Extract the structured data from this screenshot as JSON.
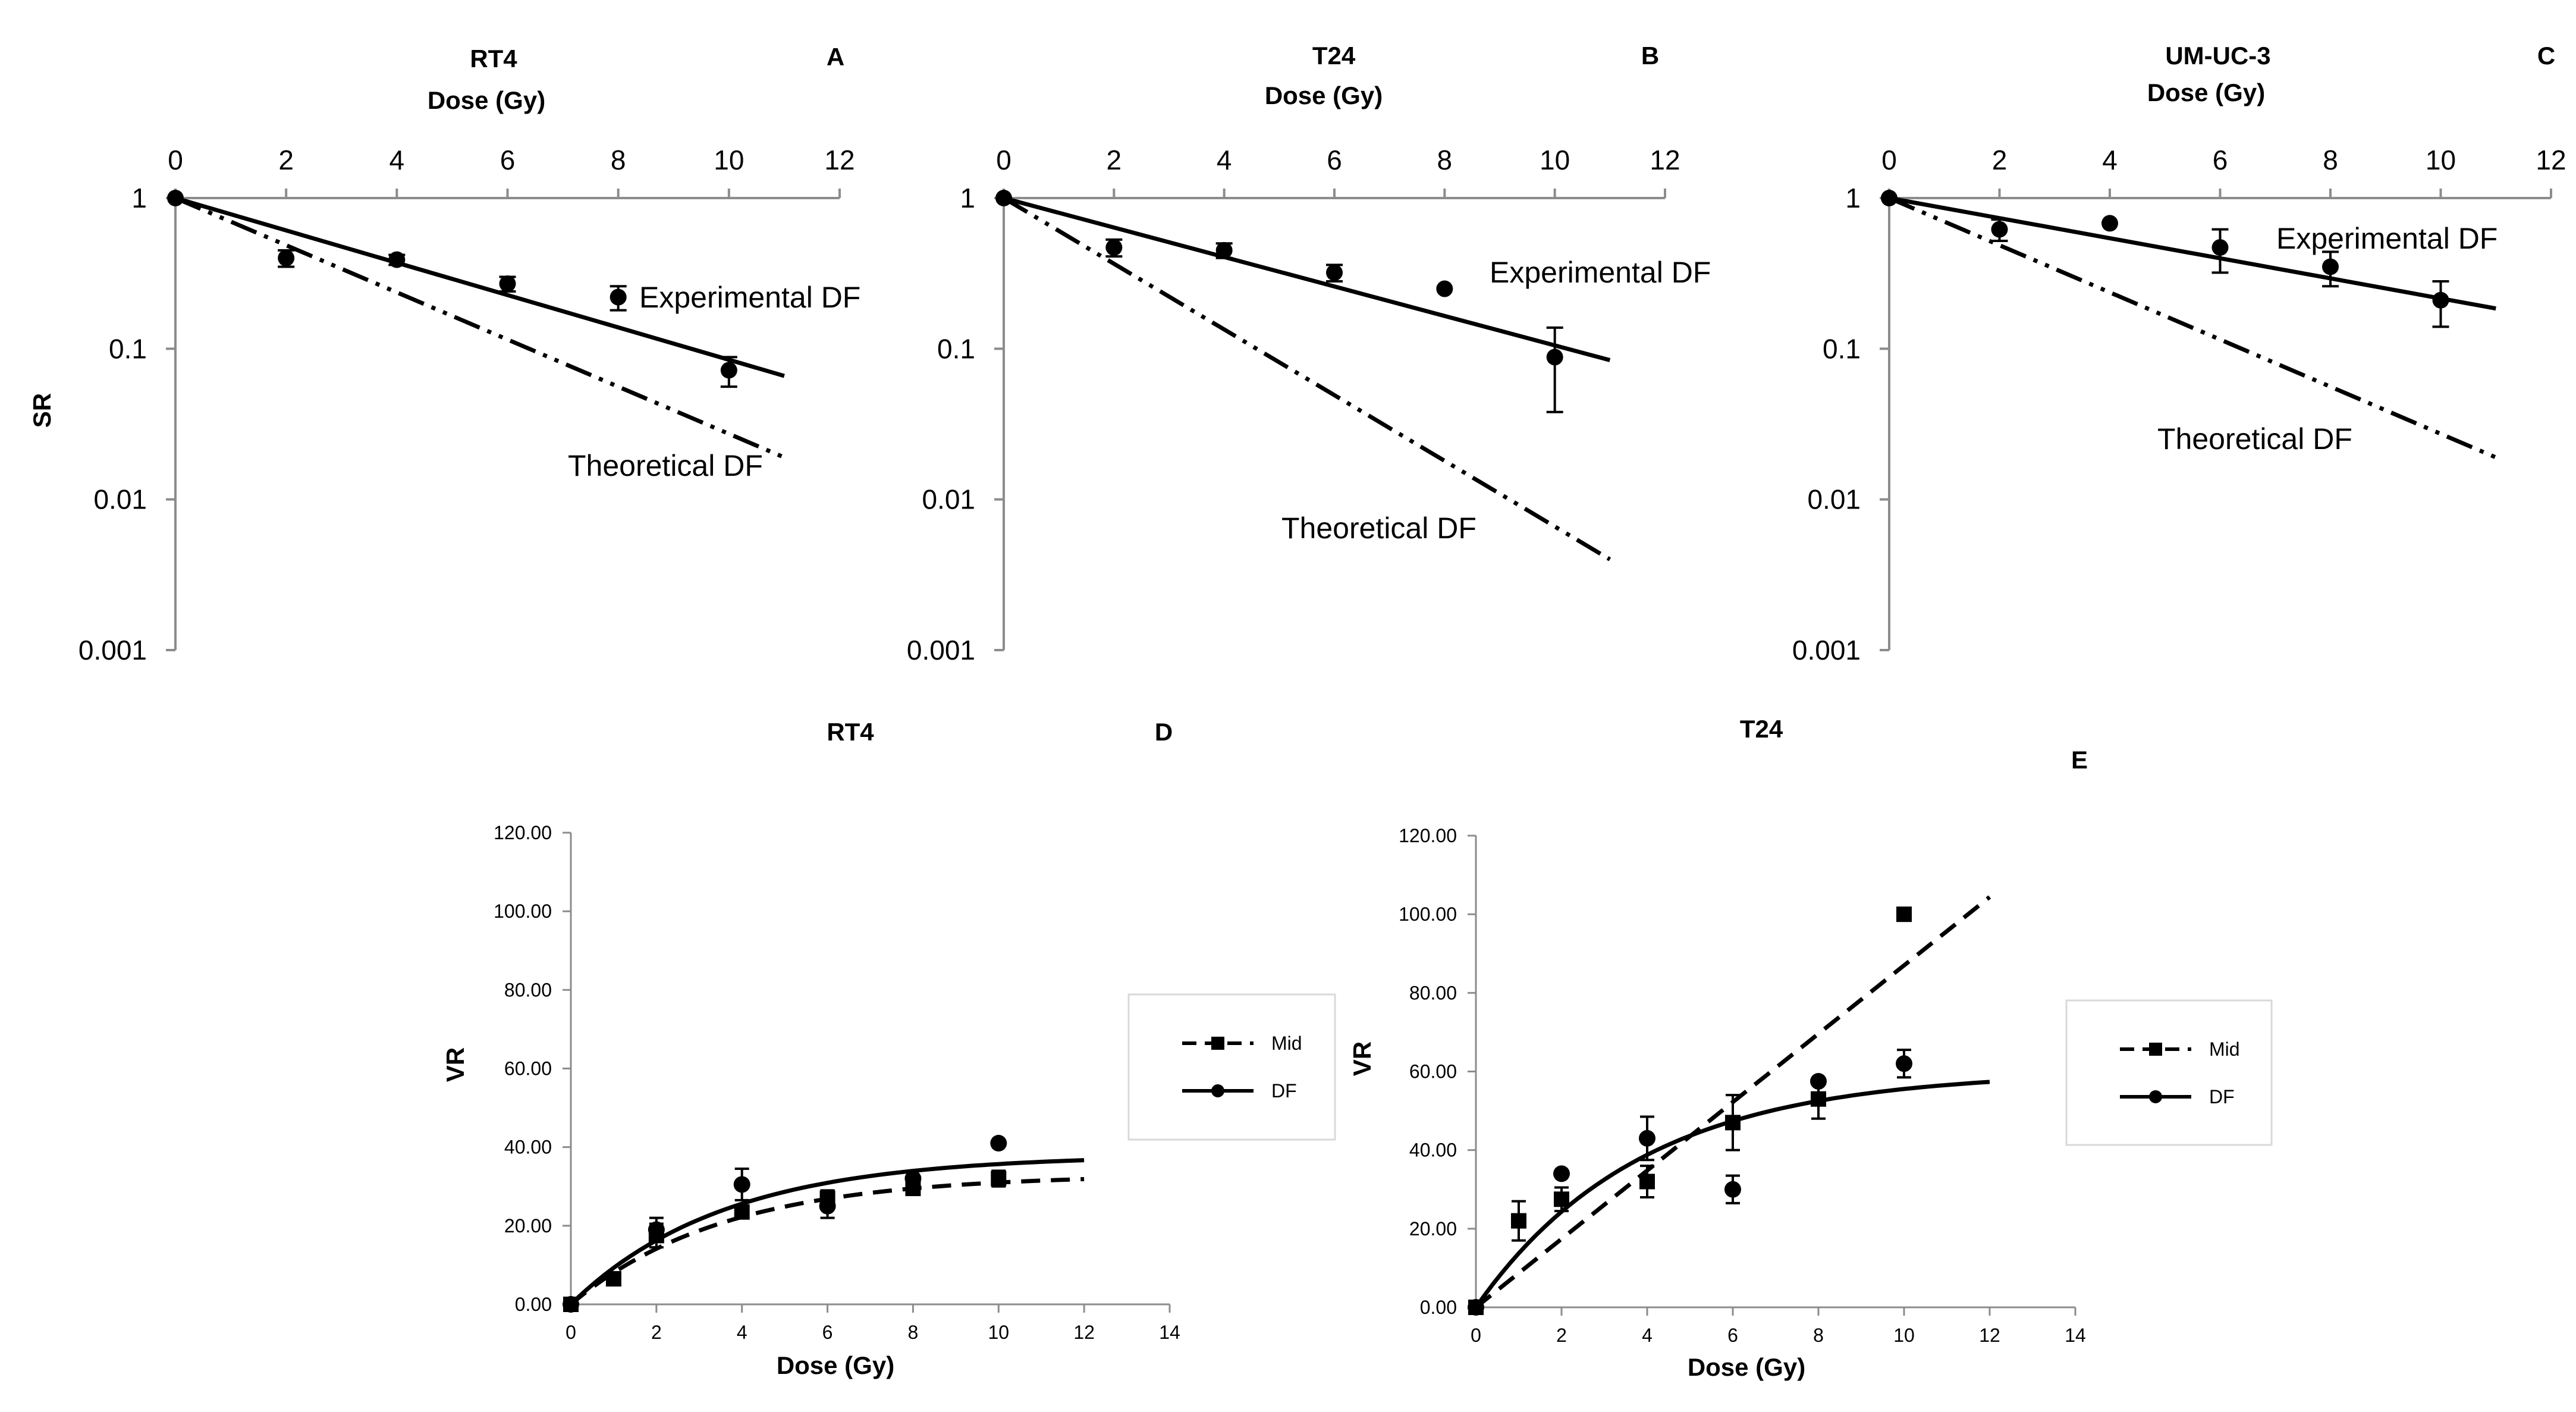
{
  "chart_data": [
    {
      "panel": "A",
      "type": "scatter",
      "title": "RT4",
      "xlabel": "Dose (Gy)",
      "ylabel": "SR",
      "x_axis_position": "top",
      "y_scale": "log",
      "xlim": [
        0,
        12
      ],
      "ylim": [
        0.001,
        1
      ],
      "xticks": [
        "0",
        "2",
        "4",
        "6",
        "8",
        "10",
        "12"
      ],
      "yticks": [
        "1",
        "0.1",
        "0.01",
        "0.001"
      ],
      "series": [
        {
          "name": "Experimental DF",
          "style": "solid",
          "x": [
            0,
            11
          ],
          "y": [
            1,
            0.066
          ]
        },
        {
          "name": "Theoretical DF",
          "style": "dash-dot-dot",
          "x": [
            0,
            11
          ],
          "y": [
            1,
            0.019
          ]
        },
        {
          "name": "Data",
          "style": "points",
          "x": [
            0,
            2,
            4,
            6,
            8,
            10
          ],
          "y": [
            1,
            0.4,
            0.39,
            0.27,
            0.22,
            0.072
          ],
          "err": [
            0,
            0.05,
            0.03,
            0.03,
            0.04,
            0.016
          ]
        }
      ],
      "annotations": [
        "Experimental DF",
        "Theoretical DF"
      ]
    },
    {
      "panel": "B",
      "type": "scatter",
      "title": "T24",
      "xlabel": "Dose (Gy)",
      "ylabel": "",
      "x_axis_position": "top",
      "y_scale": "log",
      "xlim": [
        0,
        12
      ],
      "ylim": [
        0.001,
        1
      ],
      "xticks": [
        "0",
        "2",
        "4",
        "6",
        "8",
        "10",
        "12"
      ],
      "yticks": [
        "1",
        "0.1",
        "0.01",
        "0.001"
      ],
      "series": [
        {
          "name": "Experimental DF",
          "style": "solid",
          "x": [
            0,
            11
          ],
          "y": [
            1,
            0.084
          ]
        },
        {
          "name": "Theoretical DF",
          "style": "dash-dot-dot",
          "x": [
            0,
            11
          ],
          "y": [
            1,
            0.004
          ]
        },
        {
          "name": "Data",
          "style": "points",
          "x": [
            0,
            2,
            4,
            6,
            8,
            10
          ],
          "y": [
            1,
            0.47,
            0.45,
            0.32,
            0.25,
            0.088
          ],
          "err": [
            0,
            0.06,
            0.05,
            0.04,
            0.0,
            0.05
          ]
        }
      ],
      "annotations": [
        "Experimental DF",
        "Theoretical DF"
      ]
    },
    {
      "panel": "C",
      "type": "scatter",
      "title": "UM-UC-3",
      "xlabel": "Dose (Gy)",
      "ylabel": "",
      "x_axis_position": "top",
      "y_scale": "log",
      "xlim": [
        0,
        12
      ],
      "ylim": [
        0.001,
        1
      ],
      "xticks": [
        "0",
        "2",
        "4",
        "6",
        "8",
        "10",
        "12"
      ],
      "yticks": [
        "1",
        "0.1",
        "0.01",
        "0.001"
      ],
      "series": [
        {
          "name": "Experimental DF",
          "style": "solid",
          "x": [
            0,
            11
          ],
          "y": [
            1,
            0.185
          ]
        },
        {
          "name": "Theoretical DF",
          "style": "dash-dot-dot",
          "x": [
            0,
            11
          ],
          "y": [
            1,
            0.019
          ]
        },
        {
          "name": "Data",
          "style": "points",
          "x": [
            0,
            2,
            4,
            6,
            8,
            10
          ],
          "y": [
            1,
            0.62,
            0.68,
            0.47,
            0.35,
            0.21
          ],
          "err": [
            0,
            0.1,
            0.0,
            0.15,
            0.09,
            0.07
          ]
        }
      ],
      "annotations": [
        "Experimental DF",
        "Theoretical DF"
      ]
    },
    {
      "panel": "D",
      "type": "scatter",
      "title": "RT4",
      "xlabel": "Dose (Gy)",
      "ylabel": "VR",
      "x_axis_position": "bottom",
      "y_scale": "linear",
      "xlim": [
        0,
        14
      ],
      "ylim": [
        0,
        120
      ],
      "xticks": [
        "0",
        "2",
        "4",
        "6",
        "8",
        "10",
        "12",
        "14"
      ],
      "yticks": [
        "0.00",
        "20.00",
        "40.00",
        "60.00",
        "80.00",
        "100.00",
        "120.00"
      ],
      "series": [
        {
          "name": "Mid",
          "style": "dashed",
          "marker": "square",
          "fit": {
            "a": 33,
            "k": 0.28,
            "xmax": 12
          },
          "x": [
            0,
            1,
            2,
            4,
            6,
            8,
            10
          ],
          "y": [
            0,
            6.5,
            17.5,
            23.5,
            27,
            29.5,
            32
          ],
          "err": [
            0,
            0,
            3,
            0,
            2,
            0,
            2
          ]
        },
        {
          "name": "DF",
          "style": "solid",
          "marker": "circle",
          "fit": {
            "a": 38,
            "k": 0.28,
            "xmax": 12
          },
          "x": [
            0,
            2,
            4,
            6,
            8,
            10
          ],
          "y": [
            0,
            19,
            30.5,
            25,
            32,
            41
          ],
          "err": [
            0,
            3,
            4,
            3,
            0,
            0
          ]
        }
      ],
      "legend": {
        "position": "right",
        "entries": [
          "Mid",
          "DF"
        ]
      }
    },
    {
      "panel": "E",
      "type": "scatter",
      "title": "T24",
      "xlabel": "Dose (Gy)",
      "ylabel": "VR",
      "x_axis_position": "bottom",
      "y_scale": "linear",
      "xlim": [
        0,
        14
      ],
      "ylim": [
        0,
        120
      ],
      "xticks": [
        "0",
        "2",
        "4",
        "6",
        "8",
        "10",
        "12",
        "14"
      ],
      "yticks": [
        "0.00",
        "20.00",
        "40.00",
        "60.00",
        "80.00",
        "100.00",
        "120.00"
      ],
      "series": [
        {
          "name": "Mid",
          "style": "dashed",
          "marker": "square",
          "fit": {
            "linear": 8.7,
            "xmax": 12
          },
          "x": [
            0,
            1,
            2,
            4,
            6,
            8,
            10
          ],
          "y": [
            0,
            22,
            27.5,
            32,
            47,
            53,
            100
          ],
          "err": [
            0,
            5,
            3,
            4,
            7,
            5,
            0
          ]
        },
        {
          "name": "DF",
          "style": "solid",
          "marker": "circle",
          "fit": {
            "a": 60,
            "k": 0.26,
            "xmax": 12
          },
          "x": [
            0,
            2,
            4,
            6,
            8,
            10
          ],
          "y": [
            0,
            34,
            43,
            30,
            57.5,
            62
          ],
          "err": [
            0,
            0,
            5.5,
            3.5,
            0,
            3.5
          ]
        }
      ],
      "legend": {
        "position": "right",
        "entries": [
          "Mid",
          "DF"
        ]
      }
    }
  ],
  "panel_letters": [
    "A",
    "B",
    "C",
    "D",
    "E"
  ]
}
